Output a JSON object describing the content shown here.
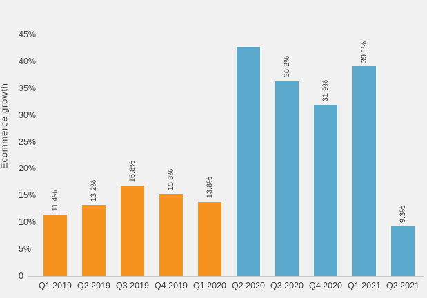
{
  "chart_data": {
    "type": "bar",
    "title": "",
    "xlabel": "",
    "ylabel": "Ecommerce growth",
    "categories": [
      "Q1 2019",
      "Q2 2019",
      "Q3 2019",
      "Q4 2019",
      "Q1 2020",
      "Q2 2020",
      "Q3 2020",
      "Q4 2020",
      "Q1 2021",
      "Q2 2021"
    ],
    "values": [
      11.4,
      13.2,
      16.8,
      15.3,
      13.8,
      42.7,
      36.3,
      31.9,
      39.1,
      9.3
    ],
    "data_labels": [
      "11.4%",
      "13.2%",
      "16.8%",
      "15.3%",
      "13.8%",
      "",
      "36.3%",
      "31.9%",
      "39.1%",
      "9.3%"
    ],
    "bar_colors": [
      "#F6921E",
      "#F6921E",
      "#F6921E",
      "#F6921E",
      "#F6921E",
      "#5BA9CD",
      "#5BA9CD",
      "#5BA9CD",
      "#5BA9CD",
      "#5BA9CD"
    ],
    "yticks": [
      {
        "value": 0,
        "label": "0"
      },
      {
        "value": 5,
        "label": "5%"
      },
      {
        "value": 10,
        "label": "10%"
      },
      {
        "value": 15,
        "label": "15%"
      },
      {
        "value": 20,
        "label": "20%"
      },
      {
        "value": 25,
        "label": "25%"
      },
      {
        "value": 30,
        "label": "30%"
      },
      {
        "value": 35,
        "label": "35%"
      },
      {
        "value": 40,
        "label": "40%"
      },
      {
        "value": 45,
        "label": "45%"
      }
    ],
    "ylim": [
      0,
      46
    ],
    "grid": false,
    "legend": false,
    "colors": {
      "orange": "#F6921E",
      "blue": "#5BA9CD",
      "background": "#F1F1F2",
      "axis_line": "#C9C9C9",
      "text": "#3F3F3F"
    }
  }
}
